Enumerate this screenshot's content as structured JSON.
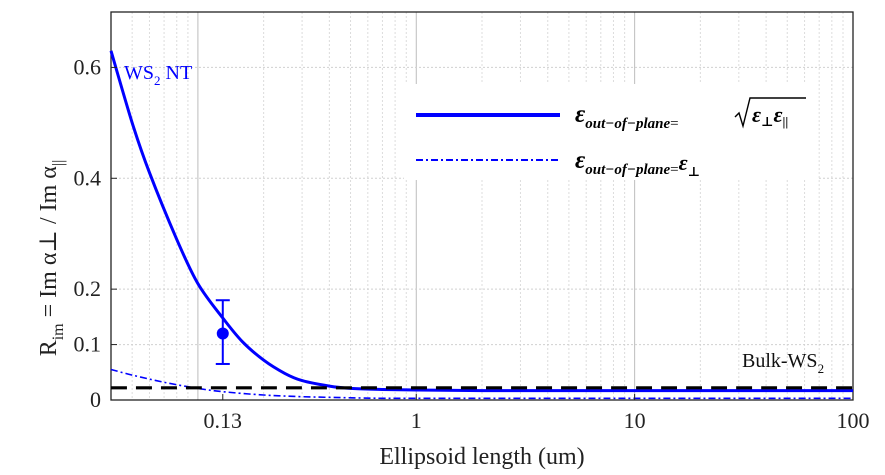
{
  "chart_data": {
    "type": "line",
    "x_scale": "log",
    "xlim": [
      0.04,
      100
    ],
    "ylim": [
      0,
      0.7
    ],
    "x_ticks": [
      0.13,
      1,
      10,
      100
    ],
    "x_tick_labels": [
      "0.13",
      "1",
      "10",
      "100"
    ],
    "y_ticks": [
      0,
      0.1,
      0.2,
      0.4,
      0.6
    ],
    "y_tick_labels": [
      "0",
      "0.1",
      "0.2",
      "0.4",
      "0.6"
    ],
    "xlabel": "Ellipsoid length (um)",
    "ylabel": "R_im = Im α⊥ / Im α||",
    "grid": true,
    "legend_position": "top-right",
    "series": [
      {
        "name": "ε_out-of-plane = √(ε⊥ ε||)",
        "style": "solid",
        "color": "#0000ff",
        "x": [
          0.04,
          0.05,
          0.06,
          0.08,
          0.1,
          0.13,
          0.16,
          0.2,
          0.25,
          0.3,
          0.4,
          0.5,
          0.7,
          1,
          2,
          5,
          10,
          50,
          100
        ],
        "y": [
          0.63,
          0.5,
          0.41,
          0.29,
          0.21,
          0.148,
          0.105,
          0.072,
          0.048,
          0.035,
          0.025,
          0.021,
          0.019,
          0.018,
          0.017,
          0.017,
          0.017,
          0.017,
          0.017
        ]
      },
      {
        "name": "ε_out-of-plane = ε⊥",
        "style": "dashdot",
        "color": "#0000ff",
        "x": [
          0.04,
          0.05,
          0.07,
          0.1,
          0.13,
          0.2,
          0.3,
          0.5,
          0.7,
          1,
          2,
          5,
          10,
          100
        ],
        "y": [
          0.055,
          0.045,
          0.032,
          0.021,
          0.015,
          0.009,
          0.006,
          0.004,
          0.003,
          0.003,
          0.003,
          0.003,
          0.003,
          0.003
        ]
      },
      {
        "name": "Bulk-WS2",
        "style": "dashed",
        "color": "#000000",
        "x": [
          0.04,
          100
        ],
        "y": [
          0.022,
          0.022
        ]
      }
    ],
    "experimental_point": {
      "x": 0.13,
      "y": 0.12,
      "y_low": 0.065,
      "y_high": 0.18,
      "color": "#0000ff"
    },
    "annotations": {
      "ws2_nt": {
        "main": "WS",
        "sub": "2",
        "suffix": " NT"
      },
      "bulk_ws2": {
        "main": "Bulk-WS",
        "sub": "2"
      }
    },
    "legend": {
      "entry1": {
        "eps": "ε",
        "sub": "out−of−plane",
        "eq": "=",
        "rad_a": "ε",
        "rad_a_sub": "⊥",
        "rad_b": "ε",
        "rad_b_sub": "||"
      },
      "entry2": {
        "eps": "ε",
        "sub": "out−of−plane",
        "eq": "=",
        "rhs": "ε",
        "rhs_sub": "⊥"
      }
    },
    "ylabel_parts": {
      "r": "R",
      "r_sub": "im",
      "eq_text": " = Im α⊥  /  Im α",
      "par_sub": "||"
    }
  }
}
